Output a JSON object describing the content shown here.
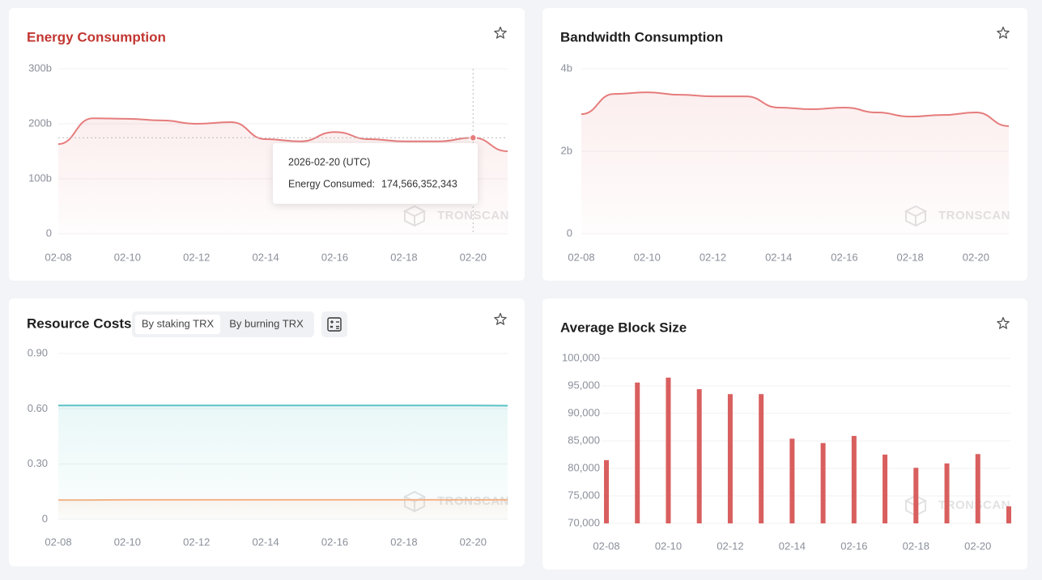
{
  "chart_data": [
    {
      "type": "line",
      "title": "Energy Consumption",
      "title_color": "#c23631",
      "categories": [
        "02-08",
        null,
        "02-10",
        null,
        "02-12",
        null,
        "02-14",
        null,
        "02-16",
        null,
        "02-18",
        null,
        "02-20",
        null
      ],
      "series": [
        {
          "color": "#e67c7c",
          "values": [
            163000000000,
            210000000000,
            209000000000,
            206000000000,
            200000000000,
            203000000000,
            172000000000,
            168000000000,
            185000000000,
            172000000000,
            168000000000,
            168000000000,
            174566352343,
            150000000000
          ],
          "value_labels": [
            null,
            null,
            null,
            null,
            null,
            null,
            null,
            null,
            null,
            null,
            null,
            null,
            "174,566,352,343",
            null
          ]
        }
      ],
      "ylim": [
        0,
        300000000000
      ],
      "yticks": [
        {
          "value": 0,
          "label": "0"
        },
        {
          "value": 100000000000,
          "label": "100b"
        },
        {
          "value": 200000000000,
          "label": "200b"
        },
        {
          "value": 300000000000,
          "label": "300b"
        }
      ],
      "grid": true,
      "watermark": "TRONSCAN",
      "tooltip": {
        "index": 12,
        "title": "2026-02-20 (UTC)",
        "label": "Energy Consumed:"
      }
    },
    {
      "type": "line",
      "title": "Bandwidth Consumption",
      "title_color": "#1f1f1f",
      "categories": [
        "02-08",
        null,
        "02-10",
        null,
        "02-12",
        null,
        "02-14",
        null,
        "02-16",
        null,
        "02-18",
        null,
        "02-20",
        null
      ],
      "series": [
        {
          "color": "#e67c7c",
          "values": [
            2900000000,
            3390000000,
            3430000000,
            3370000000,
            3330000000,
            3330000000,
            3060000000,
            3020000000,
            3060000000,
            2940000000,
            2840000000,
            2880000000,
            2940000000,
            2610000000
          ]
        }
      ],
      "ylim": [
        0,
        4000000000
      ],
      "yticks": [
        {
          "value": 0,
          "label": "0"
        },
        {
          "value": 2000000000,
          "label": "2b"
        },
        {
          "value": 4000000000,
          "label": "4b"
        }
      ],
      "grid": true,
      "watermark": "TRONSCAN"
    },
    {
      "type": "line",
      "title": "Resource Costs",
      "title_color": "#1f1f1f",
      "tabs": [
        "By staking TRX",
        "By burning TRX"
      ],
      "active_tab": 0,
      "categories": [
        "02-08",
        null,
        "02-10",
        null,
        "02-12",
        null,
        "02-14",
        null,
        "02-16",
        null,
        "02-18",
        null,
        "02-20",
        null
      ],
      "series": [
        {
          "color": "#5bc2c4",
          "values": [
            0.618,
            0.618,
            0.618,
            0.618,
            0.618,
            0.618,
            0.618,
            0.618,
            0.618,
            0.618,
            0.618,
            0.618,
            0.618,
            0.617
          ]
        },
        {
          "color": "#f2b48a",
          "values": [
            0.105,
            0.105,
            0.106,
            0.106,
            0.106,
            0.106,
            0.106,
            0.106,
            0.106,
            0.106,
            0.106,
            0.106,
            0.106,
            0.106
          ]
        }
      ],
      "ylim": [
        0,
        0.9
      ],
      "yticks": [
        0,
        {
          "value": 0.3,
          "label": "0.30"
        },
        {
          "value": 0.6,
          "label": "0.60"
        },
        {
          "value": 0.9,
          "label": "0.90"
        }
      ],
      "grid": true,
      "watermark": "TRONSCAN"
    },
    {
      "type": "bar",
      "title": "Average Block Size",
      "title_color": "#1f1f1f",
      "categories": [
        "02-08",
        null,
        "02-10",
        null,
        "02-12",
        null,
        "02-14",
        null,
        "02-16",
        null,
        "02-18",
        null,
        "02-20",
        null
      ],
      "series": [
        {
          "color": "#d95f5f",
          "values": [
            81500,
            95600,
            96500,
            94400,
            93500,
            93500,
            85400,
            84600,
            85900,
            82500,
            80100,
            80900,
            82600,
            73100
          ]
        }
      ],
      "ylim": [
        70000,
        100000
      ],
      "yticks": [
        {
          "value": 70000,
          "label": "70,000"
        },
        {
          "value": 75000,
          "label": "75,000"
        },
        {
          "value": 80000,
          "label": "80,000"
        },
        {
          "value": 85000,
          "label": "85,000"
        },
        {
          "value": 90000,
          "label": "90,000"
        },
        {
          "value": 95000,
          "label": "95,000"
        },
        {
          "value": 100000,
          "label": "100,000"
        }
      ],
      "grid": true,
      "watermark": "TRONSCAN"
    }
  ]
}
